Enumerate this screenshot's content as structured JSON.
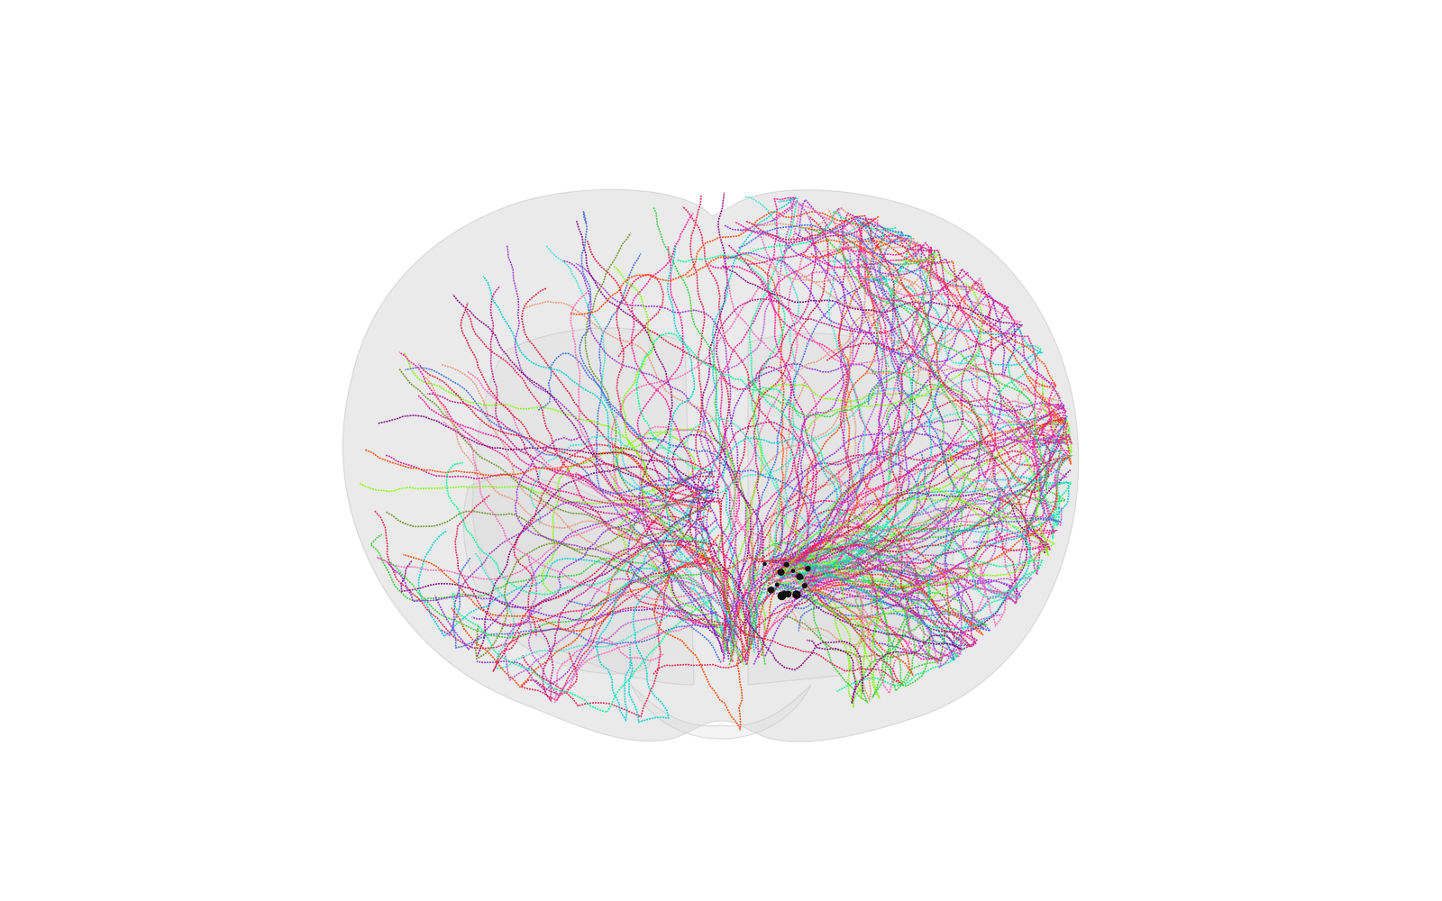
{
  "scene": {
    "background": "#ffffff",
    "brain_fill": "#d9d9d9",
    "brain_stroke": "#c8c8c8",
    "soma_color": "#111111",
    "axon_palette": [
      "#ff1493",
      "#e6194b",
      "#00ced1",
      "#9932cc",
      "#32cd32",
      "#7cfc00",
      "#ff69b4",
      "#dc143c",
      "#40e0d0",
      "#8a2be2",
      "#6b8e23",
      "#e9967a",
      "#4169e1",
      "#c71585",
      "#00fa9a",
      "#ba55d3",
      "#800080",
      "#ff4500"
    ]
  }
}
